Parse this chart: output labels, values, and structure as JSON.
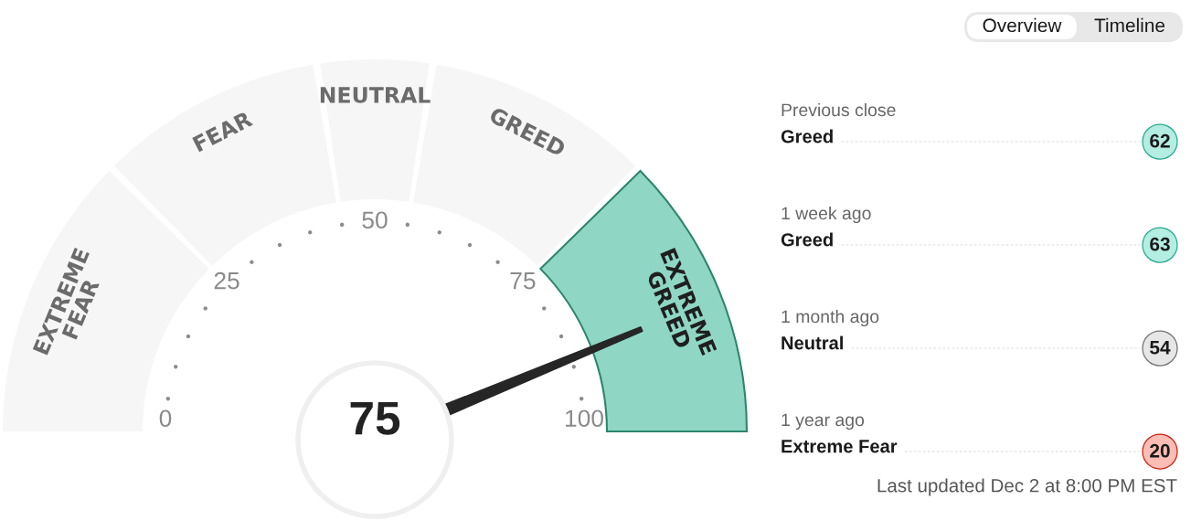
{
  "chart_data": [
    {
      "type": "donut",
      "categories": [
        "EXTREME FEAR",
        "FEAR",
        "NEUTRAL",
        "GREED",
        "EXTREME GREED"
      ],
      "values": [
        25,
        20,
        10,
        20,
        25
      ],
      "colors": [
        "#f6f6f6",
        "#f6f6f6",
        "#f6f6f6",
        "#f6f6f6",
        "#8fd7c4"
      ],
      "needle": "EXTREME GREED",
      "annotations": [
        "75",
        "0",
        "25",
        "50",
        "75",
        "100"
      ]
    },
    {
      "type": "other",
      "categories": [
        "Previous close",
        "1 week ago",
        "1 month ago",
        "1 year ago"
      ],
      "values": [
        62,
        63,
        54,
        20
      ],
      "colors": [
        "#b4ede2",
        "#b4ede2",
        "#e6e6e6",
        "#fbbdb5"
      ],
      "data_labels": true,
      "annotations": [
        "Greed",
        "Greed",
        "Neutral",
        "Extreme Fear",
        "Last updated Dec 2 at 8:00 PM EST",
        "Overview",
        "Timeline"
      ]
    }
  ]
}
